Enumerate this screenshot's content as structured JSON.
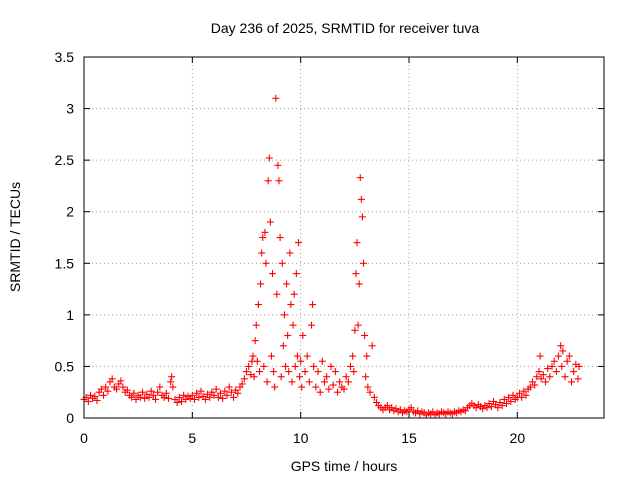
{
  "chart_data": {
    "type": "scatter",
    "title": "Day 236 of 2025, SRMTID for receiver tuva",
    "xlabel": "GPS time / hours",
    "ylabel": "SRMTID / TECUs",
    "xlim": [
      0,
      24
    ],
    "ylim": [
      0,
      3.5
    ],
    "xticks": [
      0,
      5,
      10,
      15,
      20
    ],
    "xtick_labels": [
      "0",
      "5",
      "10",
      "15",
      "20"
    ],
    "yticks": [
      0,
      0.5,
      1,
      1.5,
      2,
      2.5,
      3,
      3.5
    ],
    "ytick_labels": [
      "0",
      "0.5",
      "1",
      "1.5",
      "2",
      "2.5",
      "3",
      "3.5"
    ],
    "grid": true,
    "marker": "+",
    "color": "#ff0000",
    "series": [
      {
        "name": "SRMTID",
        "points": [
          [
            0.0,
            0.18
          ],
          [
            0.1,
            0.2
          ],
          [
            0.2,
            0.16
          ],
          [
            0.3,
            0.22
          ],
          [
            0.4,
            0.19
          ],
          [
            0.5,
            0.21
          ],
          [
            0.6,
            0.17
          ],
          [
            0.7,
            0.25
          ],
          [
            0.8,
            0.28
          ],
          [
            0.9,
            0.22
          ],
          [
            1.0,
            0.3
          ],
          [
            1.1,
            0.26
          ],
          [
            1.2,
            0.35
          ],
          [
            1.3,
            0.38
          ],
          [
            1.4,
            0.3
          ],
          [
            1.5,
            0.28
          ],
          [
            1.6,
            0.33
          ],
          [
            1.7,
            0.36
          ],
          [
            1.8,
            0.3
          ],
          [
            1.9,
            0.25
          ],
          [
            2.0,
            0.27
          ],
          [
            2.1,
            0.22
          ],
          [
            2.2,
            0.2
          ],
          [
            2.3,
            0.24
          ],
          [
            2.4,
            0.18
          ],
          [
            2.5,
            0.22
          ],
          [
            2.6,
            0.2
          ],
          [
            2.7,
            0.25
          ],
          [
            2.8,
            0.19
          ],
          [
            2.9,
            0.23
          ],
          [
            3.0,
            0.2
          ],
          [
            3.1,
            0.26
          ],
          [
            3.2,
            0.22
          ],
          [
            3.3,
            0.18
          ],
          [
            3.4,
            0.25
          ],
          [
            3.5,
            0.3
          ],
          [
            3.6,
            0.22
          ],
          [
            3.7,
            0.2
          ],
          [
            3.8,
            0.24
          ],
          [
            3.9,
            0.19
          ],
          [
            4.0,
            0.35
          ],
          [
            4.05,
            0.4
          ],
          [
            4.1,
            0.3
          ],
          [
            4.2,
            0.18
          ],
          [
            4.3,
            0.15
          ],
          [
            4.4,
            0.2
          ],
          [
            4.5,
            0.16
          ],
          [
            4.6,
            0.22
          ],
          [
            4.7,
            0.18
          ],
          [
            4.8,
            0.21
          ],
          [
            4.9,
            0.19
          ],
          [
            5.0,
            0.22
          ],
          [
            5.1,
            0.18
          ],
          [
            5.2,
            0.24
          ],
          [
            5.3,
            0.2
          ],
          [
            5.4,
            0.26
          ],
          [
            5.5,
            0.21
          ],
          [
            5.6,
            0.18
          ],
          [
            5.7,
            0.23
          ],
          [
            5.8,
            0.2
          ],
          [
            5.9,
            0.25
          ],
          [
            6.0,
            0.22
          ],
          [
            6.1,
            0.28
          ],
          [
            6.2,
            0.2
          ],
          [
            6.3,
            0.24
          ],
          [
            6.4,
            0.19
          ],
          [
            6.5,
            0.26
          ],
          [
            6.6,
            0.22
          ],
          [
            6.7,
            0.3
          ],
          [
            6.8,
            0.25
          ],
          [
            6.9,
            0.2
          ],
          [
            7.0,
            0.27
          ],
          [
            7.1,
            0.24
          ],
          [
            7.2,
            0.3
          ],
          [
            7.3,
            0.33
          ],
          [
            7.4,
            0.38
          ],
          [
            7.5,
            0.45
          ],
          [
            7.6,
            0.5
          ],
          [
            7.7,
            0.42
          ],
          [
            7.75,
            0.55
          ],
          [
            7.8,
            0.6
          ],
          [
            7.85,
            0.4
          ],
          [
            7.9,
            0.75
          ],
          [
            7.95,
            0.9
          ],
          [
            8.0,
            0.55
          ],
          [
            8.05,
            1.1
          ],
          [
            8.1,
            0.45
          ],
          [
            8.15,
            1.3
          ],
          [
            8.2,
            1.6
          ],
          [
            8.25,
            1.75
          ],
          [
            8.3,
            0.5
          ],
          [
            8.35,
            1.8
          ],
          [
            8.4,
            1.5
          ],
          [
            8.45,
            0.35
          ],
          [
            8.5,
            2.3
          ],
          [
            8.55,
            2.52
          ],
          [
            8.6,
            1.9
          ],
          [
            8.65,
            0.6
          ],
          [
            8.7,
            1.4
          ],
          [
            8.75,
            0.45
          ],
          [
            8.8,
            0.3
          ],
          [
            8.85,
            3.1
          ],
          [
            8.9,
            1.2
          ],
          [
            8.95,
            2.45
          ],
          [
            9.0,
            2.3
          ],
          [
            9.05,
            1.75
          ],
          [
            9.1,
            0.4
          ],
          [
            9.15,
            1.5
          ],
          [
            9.2,
            0.7
          ],
          [
            9.25,
            1.0
          ],
          [
            9.3,
            0.5
          ],
          [
            9.35,
            1.3
          ],
          [
            9.4,
            0.8
          ],
          [
            9.45,
            0.45
          ],
          [
            9.5,
            1.6
          ],
          [
            9.55,
            1.1
          ],
          [
            9.6,
            0.35
          ],
          [
            9.65,
            0.9
          ],
          [
            9.7,
            1.2
          ],
          [
            9.75,
            0.5
          ],
          [
            9.8,
            1.4
          ],
          [
            9.85,
            0.6
          ],
          [
            9.9,
            1.7
          ],
          [
            9.95,
            0.4
          ],
          [
            10.0,
            0.55
          ],
          [
            10.05,
            0.3
          ],
          [
            10.1,
            0.8
          ],
          [
            10.2,
            0.45
          ],
          [
            10.3,
            0.6
          ],
          [
            10.4,
            0.35
          ],
          [
            10.5,
            0.9
          ],
          [
            10.55,
            1.1
          ],
          [
            10.6,
            0.5
          ],
          [
            10.7,
            0.3
          ],
          [
            10.8,
            0.45
          ],
          [
            10.9,
            0.25
          ],
          [
            11.0,
            0.55
          ],
          [
            11.1,
            0.35
          ],
          [
            11.2,
            0.4
          ],
          [
            11.3,
            0.28
          ],
          [
            11.4,
            0.5
          ],
          [
            11.5,
            0.32
          ],
          [
            11.6,
            0.45
          ],
          [
            11.7,
            0.25
          ],
          [
            11.8,
            0.35
          ],
          [
            11.9,
            0.3
          ],
          [
            12.0,
            0.28
          ],
          [
            12.1,
            0.4
          ],
          [
            12.2,
            0.35
          ],
          [
            12.3,
            0.5
          ],
          [
            12.4,
            0.6
          ],
          [
            12.45,
            0.45
          ],
          [
            12.5,
            0.85
          ],
          [
            12.55,
            1.4
          ],
          [
            12.6,
            1.7
          ],
          [
            12.65,
            0.9
          ],
          [
            12.7,
            1.3
          ],
          [
            12.75,
            2.33
          ],
          [
            12.8,
            2.12
          ],
          [
            12.85,
            1.95
          ],
          [
            12.9,
            1.5
          ],
          [
            12.95,
            0.8
          ],
          [
            13.0,
            0.4
          ],
          [
            13.05,
            0.6
          ],
          [
            13.1,
            0.3
          ],
          [
            13.2,
            0.25
          ],
          [
            13.3,
            0.7
          ],
          [
            13.4,
            0.2
          ],
          [
            13.5,
            0.15
          ],
          [
            13.6,
            0.12
          ],
          [
            13.7,
            0.1
          ],
          [
            13.8,
            0.08
          ],
          [
            13.9,
            0.1
          ],
          [
            14.0,
            0.12
          ],
          [
            14.1,
            0.08
          ],
          [
            14.2,
            0.1
          ],
          [
            14.3,
            0.07
          ],
          [
            14.4,
            0.09
          ],
          [
            14.5,
            0.06
          ],
          [
            14.6,
            0.08
          ],
          [
            14.7,
            0.05
          ],
          [
            14.8,
            0.07
          ],
          [
            14.9,
            0.06
          ],
          [
            15.0,
            0.08
          ],
          [
            15.1,
            0.1
          ],
          [
            15.2,
            0.06
          ],
          [
            15.3,
            0.05
          ],
          [
            15.4,
            0.07
          ],
          [
            15.5,
            0.04
          ],
          [
            15.6,
            0.06
          ],
          [
            15.7,
            0.05
          ],
          [
            15.8,
            0.03
          ],
          [
            15.9,
            0.05
          ],
          [
            16.0,
            0.04
          ],
          [
            16.1,
            0.06
          ],
          [
            16.2,
            0.03
          ],
          [
            16.3,
            0.05
          ],
          [
            16.4,
            0.04
          ],
          [
            16.5,
            0.06
          ],
          [
            16.6,
            0.05
          ],
          [
            16.7,
            0.04
          ],
          [
            16.8,
            0.06
          ],
          [
            16.9,
            0.05
          ],
          [
            17.0,
            0.04
          ],
          [
            17.1,
            0.06
          ],
          [
            17.2,
            0.05
          ],
          [
            17.3,
            0.07
          ],
          [
            17.4,
            0.06
          ],
          [
            17.5,
            0.08
          ],
          [
            17.6,
            0.07
          ],
          [
            17.7,
            0.1
          ],
          [
            17.8,
            0.12
          ],
          [
            17.9,
            0.14
          ],
          [
            18.0,
            0.12
          ],
          [
            18.1,
            0.1
          ],
          [
            18.2,
            0.13
          ],
          [
            18.3,
            0.11
          ],
          [
            18.4,
            0.09
          ],
          [
            18.5,
            0.12
          ],
          [
            18.6,
            0.1
          ],
          [
            18.7,
            0.14
          ],
          [
            18.8,
            0.11
          ],
          [
            18.9,
            0.16
          ],
          [
            19.0,
            0.13
          ],
          [
            19.1,
            0.1
          ],
          [
            19.2,
            0.15
          ],
          [
            19.3,
            0.12
          ],
          [
            19.4,
            0.18
          ],
          [
            19.5,
            0.14
          ],
          [
            19.6,
            0.2
          ],
          [
            19.7,
            0.16
          ],
          [
            19.8,
            0.22
          ],
          [
            19.9,
            0.18
          ],
          [
            20.0,
            0.2
          ],
          [
            20.1,
            0.24
          ],
          [
            20.2,
            0.2
          ],
          [
            20.3,
            0.26
          ],
          [
            20.4,
            0.22
          ],
          [
            20.5,
            0.28
          ],
          [
            20.6,
            0.3
          ],
          [
            20.7,
            0.35
          ],
          [
            20.8,
            0.32
          ],
          [
            20.9,
            0.4
          ],
          [
            21.0,
            0.45
          ],
          [
            21.05,
            0.6
          ],
          [
            21.1,
            0.38
          ],
          [
            21.2,
            0.42
          ],
          [
            21.3,
            0.35
          ],
          [
            21.4,
            0.48
          ],
          [
            21.5,
            0.4
          ],
          [
            21.6,
            0.5
          ],
          [
            21.7,
            0.55
          ],
          [
            21.8,
            0.45
          ],
          [
            21.9,
            0.6
          ],
          [
            22.0,
            0.7
          ],
          [
            22.05,
            0.5
          ],
          [
            22.1,
            0.65
          ],
          [
            22.2,
            0.4
          ],
          [
            22.3,
            0.55
          ],
          [
            22.4,
            0.6
          ],
          [
            22.5,
            0.35
          ],
          [
            22.6,
            0.45
          ],
          [
            22.7,
            0.52
          ],
          [
            22.8,
            0.38
          ],
          [
            22.85,
            0.5
          ]
        ]
      }
    ]
  }
}
